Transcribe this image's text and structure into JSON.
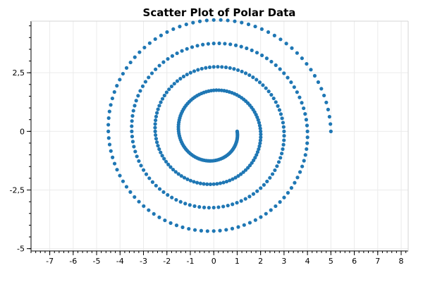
{
  "chart_data": {
    "type": "scatter",
    "title": "Scatter Plot of Polar Data",
    "xlabel": "",
    "ylabel": "",
    "xlim": [
      -7.8,
      8.3
    ],
    "ylim": [
      -5.1,
      4.7
    ],
    "x_ticks": [
      {
        "value": -7,
        "label": "-7"
      },
      {
        "value": -6,
        "label": "-6"
      },
      {
        "value": -5,
        "label": "-5"
      },
      {
        "value": -4,
        "label": "-4"
      },
      {
        "value": -3,
        "label": "-3"
      },
      {
        "value": -2,
        "label": "-2"
      },
      {
        "value": -1,
        "label": "-1"
      },
      {
        "value": 0,
        "label": "0"
      },
      {
        "value": 1,
        "label": "1"
      },
      {
        "value": 2,
        "label": "2"
      },
      {
        "value": 3,
        "label": "3"
      },
      {
        "value": 4,
        "label": "4"
      },
      {
        "value": 5,
        "label": "5"
      },
      {
        "value": 6,
        "label": "6"
      },
      {
        "value": 7,
        "label": "7"
      },
      {
        "value": 8,
        "label": "8"
      }
    ],
    "y_ticks": [
      {
        "value": 2.5,
        "label": "2,5"
      },
      {
        "value": 0,
        "label": "0"
      },
      {
        "value": -2.5,
        "label": "-2,5"
      },
      {
        "value": -5,
        "label": "-5"
      }
    ],
    "x_minor_step": 0.2,
    "y_minor_step": 0.5,
    "grid": true,
    "series": [
      {
        "color": "#1f77b4",
        "marker": "circle",
        "x": [],
        "y": []
      }
    ]
  },
  "colors": {
    "point": "#1f77b4",
    "grid": "#ebebeb",
    "axis": "#000000",
    "background": "#ffffff"
  }
}
